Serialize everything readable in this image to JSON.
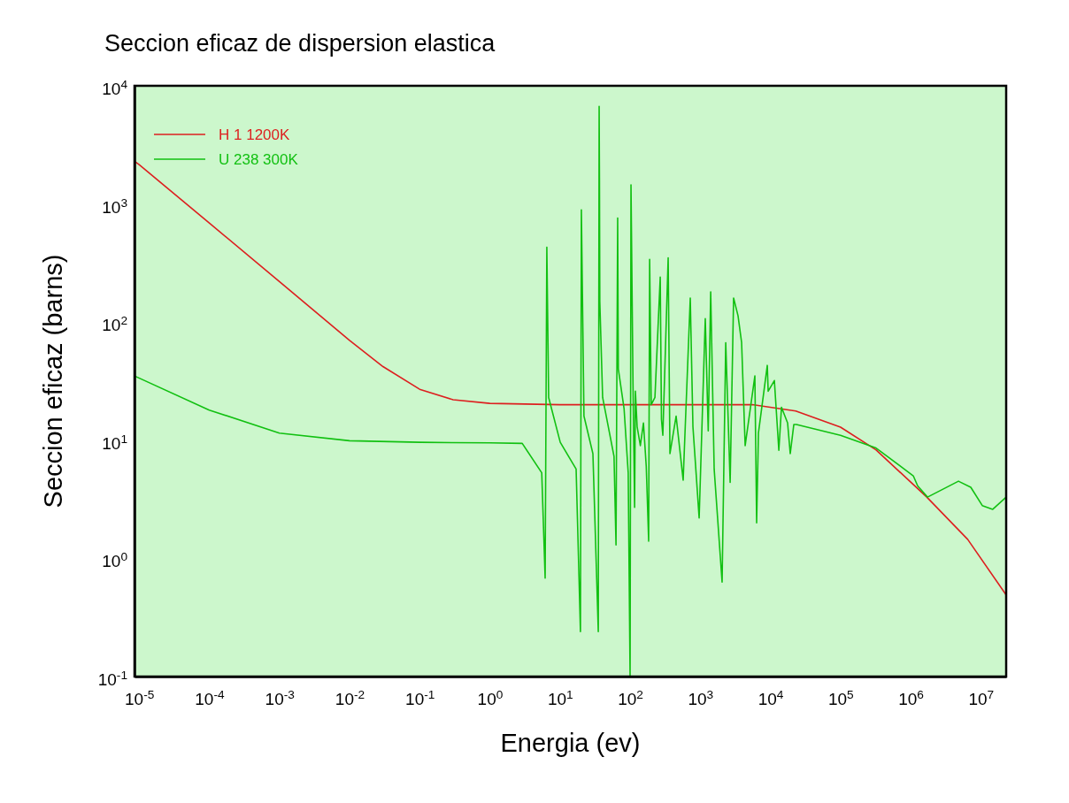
{
  "chart_data": {
    "type": "line",
    "title": "Seccion eficaz de dispersion elastica",
    "xlabel": "Energia (ev)",
    "ylabel": "Seccion eficaz (barns)",
    "log": "xy",
    "grid": false,
    "legend": "top left",
    "marker": "none",
    "line_style": "solid",
    "xlim": [
      8.6e-06,
      23000000.0
    ],
    "ylim": [
      0.1,
      10000
    ],
    "xticks": [
      {
        "value": 1e-05,
        "label": "10$^{-5}$"
      },
      {
        "value": 0.0001,
        "label": "10$^{-4}$"
      },
      {
        "value": 0.001,
        "label": "10$^{-3}$"
      },
      {
        "value": 0.01,
        "label": "10$^{-2}$"
      },
      {
        "value": 0.1,
        "label": "10$^{-1}$"
      },
      {
        "value": 1,
        "label": "10$^{0}$"
      },
      {
        "value": 10,
        "label": "10$^{1}$"
      },
      {
        "value": 100,
        "label": "10$^{2}$"
      },
      {
        "value": 1000,
        "label": "10$^{3}$"
      },
      {
        "value": 10000,
        "label": "10$^{4}$"
      },
      {
        "value": 100000,
        "label": "10$^{5}$"
      },
      {
        "value": 1000000,
        "label": "10$^{6}$"
      },
      {
        "value": 10000000,
        "label": "10$^{7}$"
      }
    ],
    "yticks": [
      {
        "value": 0.1,
        "label": "10$^{-1}$"
      },
      {
        "value": 1,
        "label": "10$^{0}$"
      },
      {
        "value": 10,
        "label": "10$^{1}$"
      },
      {
        "value": 100,
        "label": "10$^{2}$"
      },
      {
        "value": 1000,
        "label": "10$^{3}$"
      },
      {
        "value": 10000,
        "label": "10$^{4}$"
      }
    ],
    "series": [
      {
        "name": "H 1 1200K",
        "color": "#dd1f1f",
        "x": [
          8.6e-06,
          1e-05,
          0.0001,
          0.001,
          0.01,
          0.03,
          0.1,
          0.3,
          1,
          10,
          100,
          1000,
          5500,
          23000,
          100000,
          320000,
          1700000,
          6500000,
          23000000
        ],
        "values": [
          2300,
          2150,
          690,
          220,
          70,
          42,
          27,
          22,
          20.5,
          20,
          20,
          20,
          20,
          17.7,
          12.9,
          8.3,
          3.3,
          1.45,
          0.49
        ]
      },
      {
        "name": "U 238 300K",
        "color": "#11c011",
        "x": [
          8.6e-06,
          0.0001,
          0.001,
          0.01,
          0.1,
          1,
          2.9,
          5.5,
          6.15,
          6.5,
          6.9,
          10.1,
          17,
          19.6,
          20.2,
          22,
          29.5,
          35.2,
          36.2,
          36.6,
          37,
          40.6,
          59,
          63,
          66.5,
          68,
          82,
          94,
          100,
          103,
          110,
          116,
          119,
          126,
          140,
          155,
          170,
          184,
          190,
          200,
          226,
          269,
          280,
          293,
          349,
          370,
          453,
          571,
          721,
          787,
          965,
          1180,
          1300,
          1410,
          1580,
          2050,
          2310,
          2670,
          2990,
          3460,
          3890,
          4370,
          6010,
          6370,
          6760,
          9040,
          9300,
          11400,
          13200,
          14400,
          17600,
          19200,
          21600,
          23500,
          100000,
          320000,
          1090000,
          1260000,
          1740000,
          4800000,
          7200000,
          10500000,
          14800000,
          23000000
        ],
        "values": [
          35,
          18,
          11.5,
          9.9,
          9.6,
          9.5,
          9.4,
          5.3,
          0.68,
          430,
          23,
          9.6,
          5.7,
          0.24,
          890,
          16,
          7.7,
          0.24,
          6700,
          1580,
          150,
          23,
          7.3,
          1.3,
          760,
          40,
          18.6,
          5.3,
          0.1,
          1450,
          30,
          2.7,
          26,
          13,
          9,
          14,
          6,
          1.4,
          340,
          20,
          23,
          240,
          15,
          11,
          350,
          7.7,
          16,
          4.6,
          160,
          13,
          2.2,
          107,
          12,
          180,
          5.7,
          0.63,
          67,
          4.4,
          160,
          113,
          67,
          9,
          35,
          2,
          11.5,
          43,
          26,
          32,
          8.2,
          19,
          14,
          7.7,
          13.6,
          13.6,
          11,
          8.6,
          5,
          4.1,
          3.3,
          4.5,
          4,
          2.8,
          2.6,
          3.3
        ]
      }
    ]
  }
}
